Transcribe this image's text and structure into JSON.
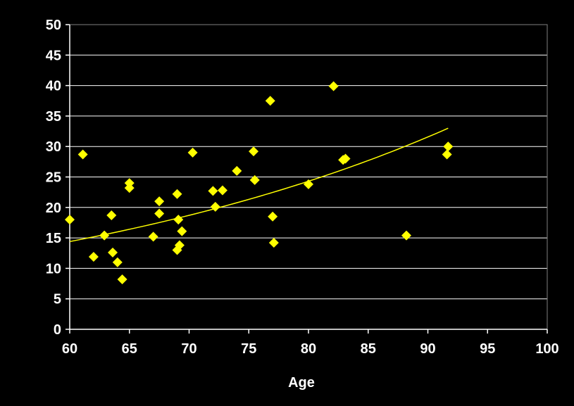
{
  "chart_data": {
    "type": "scatter",
    "title": "",
    "xlabel": "Age",
    "ylabel": "",
    "xlim": [
      60,
      100
    ],
    "ylim": [
      0,
      50
    ],
    "x_ticks": [
      60,
      65,
      70,
      75,
      80,
      85,
      90,
      95,
      100
    ],
    "y_ticks": [
      0,
      5,
      10,
      15,
      20,
      25,
      30,
      35,
      40,
      45,
      50
    ],
    "grid": "horizontal",
    "legend": "none",
    "colors": {
      "background": "#000000",
      "plot_border": "#808080",
      "gridline": "#ffffff",
      "axis": "#ffffff",
      "marker": "#ffff00",
      "trendline": "#ffff00",
      "text": "#ffffff"
    },
    "marker_shape": "diamond",
    "series": [
      {
        "points": [
          [
            60,
            18
          ],
          [
            61.1,
            28.7
          ],
          [
            62,
            11.9
          ],
          [
            62.9,
            15.4
          ],
          [
            63.5,
            18.7
          ],
          [
            63.6,
            12.6
          ],
          [
            64,
            11
          ],
          [
            64.4,
            8.2
          ],
          [
            65,
            23.2
          ],
          [
            65,
            24
          ],
          [
            67,
            15.2
          ],
          [
            67.5,
            19
          ],
          [
            67.5,
            21
          ],
          [
            69,
            22.2
          ],
          [
            69,
            13
          ],
          [
            69.1,
            18
          ],
          [
            69.2,
            13.8
          ],
          [
            69.4,
            16.1
          ],
          [
            70.3,
            29
          ],
          [
            72,
            22.7
          ],
          [
            72.2,
            20.1
          ],
          [
            72.8,
            22.8
          ],
          [
            74,
            26
          ],
          [
            75.4,
            29.2
          ],
          [
            75.5,
            24.5
          ],
          [
            76.8,
            37.5
          ],
          [
            77,
            18.5
          ],
          [
            77.1,
            14.2
          ],
          [
            80,
            23.8
          ],
          [
            82.1,
            39.9
          ],
          [
            82.9,
            27.8
          ],
          [
            83.1,
            28
          ],
          [
            88.2,
            15.4
          ],
          [
            91.6,
            28.7
          ],
          [
            91.7,
            30
          ]
        ]
      }
    ],
    "trendline": {
      "type": "exponential",
      "x_range": [
        60,
        91.7
      ],
      "start_y": 14.4,
      "end_y": 33
    }
  }
}
